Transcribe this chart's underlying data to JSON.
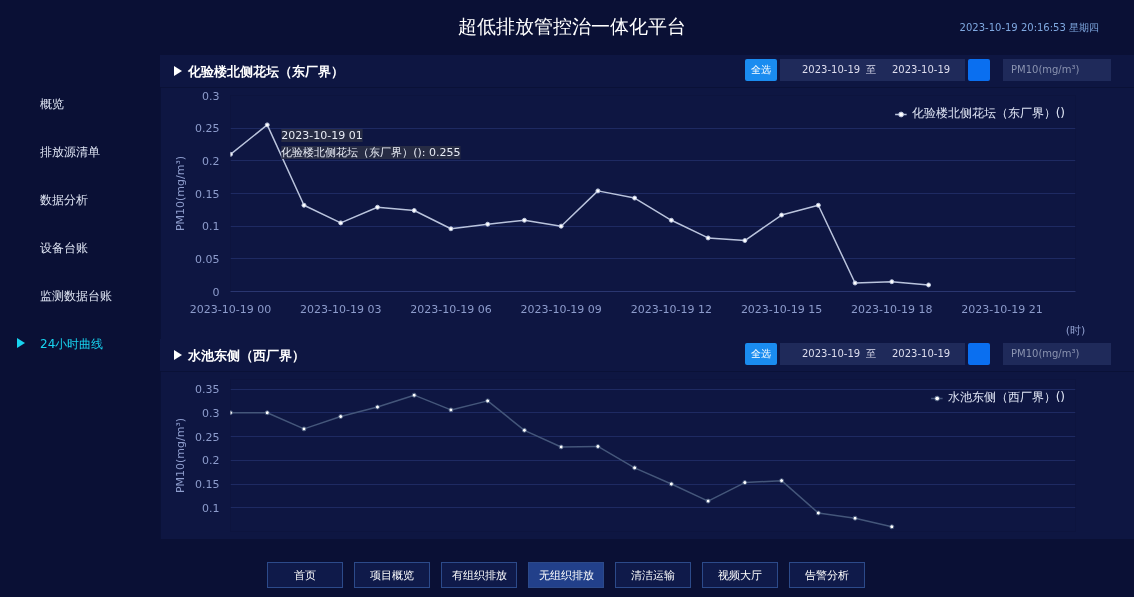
{
  "chart_data": [
    {
      "type": "line",
      "title": "化验楼北侧花坛（东厂界）",
      "ylabel": "PM10(mg/m³)",
      "xlabel": "(时)",
      "x": [
        "2023-10-19T00:00",
        "2023-10-19T01:00",
        "2023-10-19T02:00",
        "2023-10-19T03:00",
        "2023-10-19T04:00",
        "2023-10-19T05:00",
        "2023-10-19T06:00",
        "2023-10-19T07:00",
        "2023-10-19T08:00",
        "2023-10-19T09:00",
        "2023-10-19T10:00",
        "2023-10-19T11:00",
        "2023-10-19T12:00",
        "2023-10-19T13:00",
        "2023-10-19T14:00",
        "2023-10-19T15:00",
        "2023-10-19T16:00",
        "2023-10-19T17:00",
        "2023-10-19T18:00",
        "2023-10-19T19:00"
      ],
      "series": [
        {
          "name": "化验楼北侧花坛（东厂界）()",
          "color": "#b9c3dc",
          "values": [
            0.21,
            0.255,
            0.132,
            0.105,
            0.129,
            0.124,
            0.096,
            0.103,
            0.109,
            0.1,
            0.154,
            0.143,
            0.109,
            0.082,
            0.078,
            0.117,
            0.132,
            0.013,
            0.015,
            0.01
          ]
        }
      ],
      "xlim": [
        "2023-10-19T00:00",
        "2023-10-19T23:00"
      ],
      "xticks": [
        {
          "value": "2023-10-19T00:00",
          "label": "2023-10-19 00"
        },
        {
          "value": "2023-10-19T03:00",
          "label": "2023-10-19 03"
        },
        {
          "value": "2023-10-19T06:00",
          "label": "2023-10-19 06"
        },
        {
          "value": "2023-10-19T09:00",
          "label": "2023-10-19 09"
        },
        {
          "value": "2023-10-19T12:00",
          "label": "2023-10-19 12"
        },
        {
          "value": "2023-10-19T15:00",
          "label": "2023-10-19 15"
        },
        {
          "value": "2023-10-19T18:00",
          "label": "2023-10-19 18"
        },
        {
          "value": "2023-10-19T21:00",
          "label": "2023-10-19 21"
        }
      ],
      "ylim": [
        0,
        0.3
      ],
      "yticks": [
        0,
        0.05,
        0.1,
        0.15,
        0.2,
        0.25,
        0.3
      ],
      "grid": "y",
      "legend": "top right",
      "marker": "circle",
      "line_style": "solid",
      "annotations": [
        "超低排放管控治一体化平台",
        "2023-10-19 20:16:53 星期四",
        "概览",
        "排放源清单",
        "数据分析",
        "设备台账",
        "监测数据台账",
        "24小时曲线",
        "首页",
        "项目概览",
        "有组织排放",
        "无组织排放",
        "清洁运输",
        "视频大厅",
        "告警分析",
        "全选",
        "2023-10-19",
        "至",
        "2023-10-19",
        "PM10(mg/m³)",
        {
          "text": "2023-10-19 01\n化验楼北侧花坛（东厂界）(): 0.255",
          "x": "2023-10-19T01:00",
          "y": 0.255
        }
      ]
    },
    {
      "type": "line",
      "title": "水池东侧（西厂界）",
      "ylabel": "PM10(mg/m³)",
      "x": [
        "2023-10-19T00:00",
        "2023-10-19T01:00",
        "2023-10-19T02:00",
        "2023-10-19T03:00",
        "2023-10-19T04:00",
        "2023-10-19T05:00",
        "2023-10-19T06:00",
        "2023-10-19T07:00",
        "2023-10-19T08:00",
        "2023-10-19T09:00",
        "2023-10-19T10:00",
        "2023-10-19T11:00",
        "2023-10-19T12:00",
        "2023-10-19T13:00",
        "2023-10-19T14:00",
        "2023-10-19T15:00",
        "2023-10-19T16:00",
        "2023-10-19T17:00",
        "2023-10-19T18:00"
      ],
      "series": [
        {
          "name": "水池东侧（西厂界）()",
          "color": "#44567a",
          "values": [
            0.3,
            0.3,
            0.266,
            0.292,
            0.312,
            0.337,
            0.306,
            0.325,
            0.263,
            0.228,
            0.229,
            0.184,
            0.15,
            0.114,
            0.153,
            0.157,
            0.089,
            0.078,
            0.06
          ]
        }
      ],
      "xlim": [
        "2023-10-19T00:00",
        "2023-10-19T23:00"
      ],
      "ylim": [
        0.05,
        0.37
      ],
      "yticks": [
        0.1,
        0.15,
        0.2,
        0.25,
        0.3,
        0.35
      ],
      "tick_labels": "y",
      "grid": "y",
      "legend": "top right",
      "marker": "circle",
      "line_style": "solid",
      "annotations": [
        "全选",
        "2023-10-19",
        "至",
        "2023-10-19",
        "PM10(mg/m³)"
      ]
    }
  ]
}
